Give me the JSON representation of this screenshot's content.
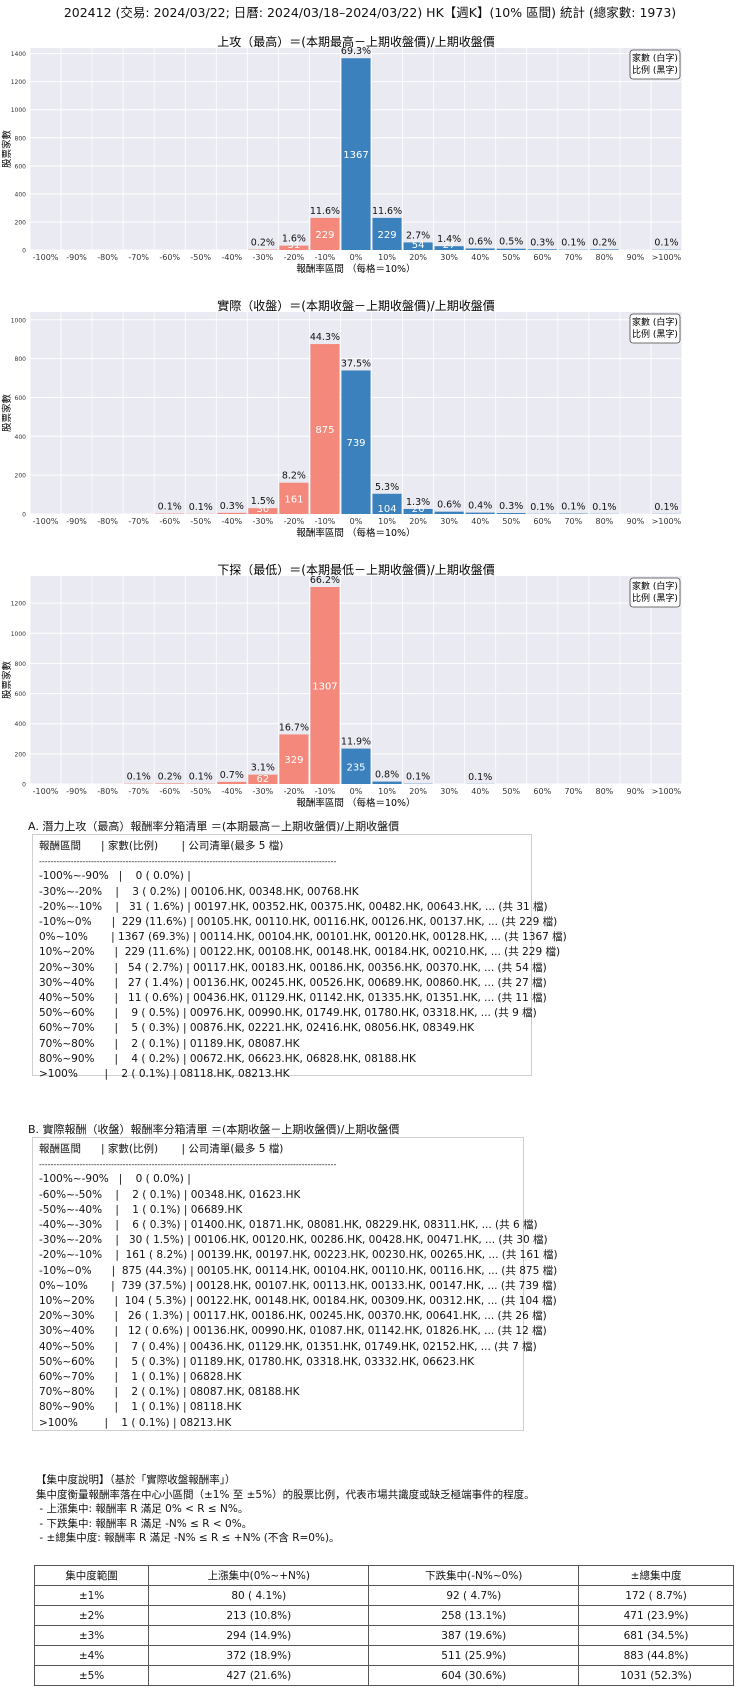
{
  "suptitle": "202412 (交易: 2024/03/22; 日曆: 2024/03/18–2024/03/22) HK【週K】(10% 區間) 統計 (總家數: 1973)",
  "legend_box": [
    "家數 (白字)",
    "比例 (黑字)"
  ],
  "colors": {
    "positive": "#3a81bd",
    "negative": "#f4897b",
    "plot_bg": "#eaeaf2"
  },
  "chart_data": [
    {
      "type": "bar",
      "title": "上攻（最高）＝(本期最高－上期收盤價)/上期收盤價",
      "xlabel": "報酬率區間 （每格＝10%）",
      "ylabel": "股票家數",
      "ylim": [
        0,
        1440
      ],
      "yticks": [
        0,
        200,
        400,
        600,
        800,
        1000,
        1200,
        1400
      ],
      "categories": [
        "-100%",
        "-90%",
        "-80%",
        "-70%",
        "-60%",
        "-50%",
        "-40%",
        "-30%",
        "-20%",
        "-10%",
        "0%",
        "10%",
        "20%",
        "30%",
        "40%",
        "50%",
        "60%",
        "70%",
        "80%",
        "90%",
        ">100%"
      ],
      "values": [
        0,
        0,
        0,
        0,
        0,
        0,
        0,
        3,
        31,
        229,
        1367,
        229,
        54,
        27,
        11,
        9,
        5,
        2,
        4,
        0,
        2
      ],
      "pct_labels": [
        "",
        "",
        "",
        "",
        "",
        "",
        "",
        "0.2%",
        "1.6%",
        "11.6%",
        "69.3%",
        "11.6%",
        "2.7%",
        "1.4%",
        "0.6%",
        "0.5%",
        "0.3%",
        "0.1%",
        "0.2%",
        "",
        "0.1%"
      ]
    },
    {
      "type": "bar",
      "title": "實際（收盤）＝(本期收盤－上期收盤價)/上期收盤價",
      "xlabel": "報酬率區間 （每格＝10%）",
      "ylabel": "股票家數",
      "ylim": [
        0,
        1040
      ],
      "yticks": [
        0,
        200,
        400,
        600,
        800,
        1000
      ],
      "categories": [
        "-100%",
        "-90%",
        "-80%",
        "-70%",
        "-60%",
        "-50%",
        "-40%",
        "-30%",
        "-20%",
        "-10%",
        "0%",
        "10%",
        "20%",
        "30%",
        "40%",
        "50%",
        "60%",
        "70%",
        "80%",
        "90%",
        ">100%"
      ],
      "values": [
        0,
        0,
        0,
        0,
        2,
        1,
        6,
        30,
        161,
        875,
        739,
        104,
        26,
        12,
        7,
        5,
        1,
        2,
        1,
        0,
        1
      ],
      "pct_labels": [
        "",
        "",
        "",
        "",
        "0.1%",
        "0.1%",
        "0.3%",
        "1.5%",
        "8.2%",
        "44.3%",
        "37.5%",
        "5.3%",
        "1.3%",
        "0.6%",
        "0.4%",
        "0.3%",
        "0.1%",
        "0.1%",
        "0.1%",
        "",
        "0.1%"
      ]
    },
    {
      "type": "bar",
      "title": "下探（最低）＝(本期最低－上期收盤價)/上期收盤價",
      "xlabel": "報酬率區間 （每格＝10%）",
      "ylabel": "股票家數",
      "ylim": [
        0,
        1380
      ],
      "yticks": [
        0,
        200,
        400,
        600,
        800,
        1000,
        1200
      ],
      "categories": [
        "-100%",
        "-90%",
        "-80%",
        "-70%",
        "-60%",
        "-50%",
        "-40%",
        "-30%",
        "-20%",
        "-10%",
        "0%",
        "10%",
        "20%",
        "30%",
        "40%",
        "50%",
        "60%",
        "70%",
        "80%",
        "90%",
        ">100%"
      ],
      "values": [
        0,
        0,
        0,
        2,
        4,
        2,
        14,
        62,
        329,
        1307,
        235,
        16,
        2,
        0,
        1,
        0,
        0,
        0,
        0,
        0,
        0
      ],
      "pct_labels": [
        "",
        "",
        "",
        "0.1%",
        "0.2%",
        "0.1%",
        "0.7%",
        "3.1%",
        "16.7%",
        "66.2%",
        "11.9%",
        "0.8%",
        "0.1%",
        "",
        "0.1%",
        "",
        "",
        "",
        "",
        "",
        ""
      ]
    }
  ],
  "section_a": {
    "title": "A. 潛力上攻（最高）報酬率分箱清單 ＝(本期最高－上期收盤價)/上期收盤價",
    "rows": [
      "報酬區間      | 家數(比例)       | 公司清單(最多 5 檔)",
      "-------------------------------------------------------------------------------------------------------",
      "-100%~-90%   |    0 ( 0.0%) |",
      "-30%~-20%    |    3 ( 0.2%) | 00106.HK, 00348.HK, 00768.HK",
      "-20%~-10%    |   31 ( 1.6%) | 00197.HK, 00352.HK, 00375.HK, 00482.HK, 00643.HK, ... (共 31 檔)",
      "-10%~0%      |  229 (11.6%) | 00105.HK, 00110.HK, 00116.HK, 00126.HK, 00137.HK, ... (共 229 檔)",
      "0%~10%       | 1367 (69.3%) | 00114.HK, 00104.HK, 00101.HK, 00120.HK, 00128.HK, ... (共 1367 檔)",
      "10%~20%      |  229 (11.6%) | 00122.HK, 00108.HK, 00148.HK, 00184.HK, 00210.HK, ... (共 229 檔)",
      "20%~30%      |   54 ( 2.7%) | 00117.HK, 00183.HK, 00186.HK, 00356.HK, 00370.HK, ... (共 54 檔)",
      "30%~40%      |   27 ( 1.4%) | 00136.HK, 00245.HK, 00526.HK, 00689.HK, 00860.HK, ... (共 27 檔)",
      "40%~50%      |   11 ( 0.6%) | 00436.HK, 01129.HK, 01142.HK, 01335.HK, 01351.HK, ... (共 11 檔)",
      "50%~60%      |    9 ( 0.5%) | 00976.HK, 00990.HK, 01749.HK, 01780.HK, 03318.HK, ... (共 9 檔)",
      "60%~70%      |    5 ( 0.3%) | 00876.HK, 02221.HK, 02416.HK, 08056.HK, 08349.HK",
      "70%~80%      |    2 ( 0.1%) | 01189.HK, 08087.HK",
      "80%~90%      |    4 ( 0.2%) | 00672.HK, 06623.HK, 06828.HK, 08188.HK",
      ">100%        |    2 ( 0.1%) | 08118.HK, 08213.HK"
    ]
  },
  "section_b": {
    "title": "B. 實際報酬（收盤）報酬率分箱清單 ＝(本期收盤－上期收盤價)/上期收盤價",
    "rows": [
      "報酬區間      | 家數(比例)       | 公司清單(最多 5 檔)",
      "-------------------------------------------------------------------------------------------------------",
      "-100%~-90%   |    0 ( 0.0%) |",
      "-60%~-50%    |    2 ( 0.1%) | 00348.HK, 01623.HK",
      "-50%~-40%    |    1 ( 0.1%) | 06689.HK",
      "-40%~-30%    |    6 ( 0.3%) | 01400.HK, 01871.HK, 08081.HK, 08229.HK, 08311.HK, ... (共 6 檔)",
      "-30%~-20%    |   30 ( 1.5%) | 00106.HK, 00120.HK, 00286.HK, 00428.HK, 00471.HK, ... (共 30 檔)",
      "-20%~-10%    |  161 ( 8.2%) | 00139.HK, 00197.HK, 00223.HK, 00230.HK, 00265.HK, ... (共 161 檔)",
      "-10%~0%      |  875 (44.3%) | 00105.HK, 00114.HK, 00104.HK, 00110.HK, 00116.HK, ... (共 875 檔)",
      "0%~10%       |  739 (37.5%) | 00128.HK, 00107.HK, 00113.HK, 00133.HK, 00147.HK, ... (共 739 檔)",
      "10%~20%      |  104 ( 5.3%) | 00122.HK, 00148.HK, 00184.HK, 00309.HK, 00312.HK, ... (共 104 檔)",
      "20%~30%      |   26 ( 1.3%) | 00117.HK, 00186.HK, 00245.HK, 00370.HK, 00641.HK, ... (共 26 檔)",
      "30%~40%      |   12 ( 0.6%) | 00136.HK, 00990.HK, 01087.HK, 01142.HK, 01826.HK, ... (共 12 檔)",
      "40%~50%      |    7 ( 0.4%) | 00436.HK, 01129.HK, 01351.HK, 01749.HK, 02152.HK, ... (共 7 檔)",
      "50%~60%      |    5 ( 0.3%) | 01189.HK, 01780.HK, 03318.HK, 03332.HK, 06623.HK",
      "60%~70%      |    1 ( 0.1%) | 06828.HK",
      "70%~80%      |    2 ( 0.1%) | 08087.HK, 08188.HK",
      "80%~90%      |    1 ( 0.1%) | 08118.HK",
      ">100%        |    1 ( 0.1%) | 08213.HK"
    ]
  },
  "note": {
    "lines": [
      "【集中度說明】（基於「實際收盤報酬率」）",
      "集中度衡量報酬率落在中心小區間（±1% 至 ±5%）的股票比例，代表市場共識度或缺乏極端事件的程度。",
      " - 上漲集中: 報酬率 R 滿足 0% < R ≤ N%。",
      " - 下跌集中: 報酬率 R 滿足 -N% ≤ R < 0%。",
      " - ±總集中度: 報酬率 R 滿足 -N% ≤ R ≤ +N% (不含 R=0%)。"
    ]
  },
  "conc_table": {
    "headers": [
      "集中度範圍",
      "上漲集中(0%~+N%)",
      "下跌集中(-N%~0%)",
      "±總集中度"
    ],
    "rows": [
      [
        "±1%",
        "80 ( 4.1%)",
        "92 ( 4.7%)",
        "172 ( 8.7%)"
      ],
      [
        "±2%",
        "213 (10.8%)",
        "258 (13.1%)",
        "471 (23.9%)"
      ],
      [
        "±3%",
        "294 (14.9%)",
        "387 (19.6%)",
        "681 (34.5%)"
      ],
      [
        "±4%",
        "372 (18.9%)",
        "511 (25.9%)",
        "883 (44.8%)"
      ],
      [
        "±5%",
        "427 (21.6%)",
        "604 (30.6%)",
        "1031 (52.3%)"
      ]
    ]
  }
}
